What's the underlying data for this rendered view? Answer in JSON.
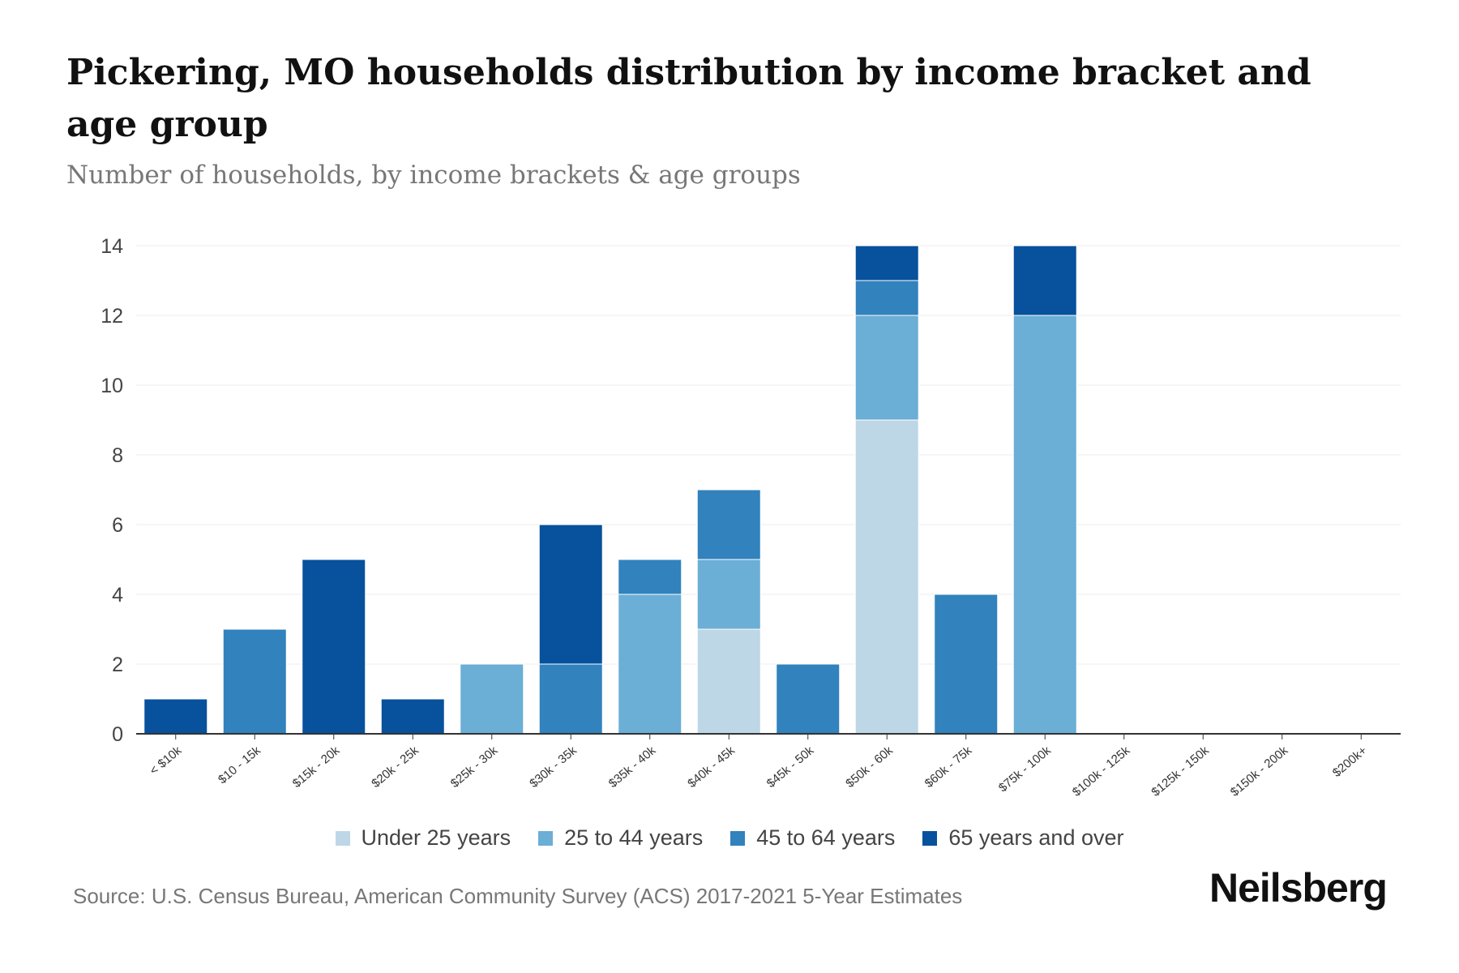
{
  "title": "Pickering, MO households distribution by income bracket and age group",
  "subtitle": "Number of households, by income brackets & age groups",
  "source": "Source: U.S. Census Bureau, American Community Survey (ACS) 2017-2021 5-Year Estimates",
  "logo": "Neilsberg",
  "chart_data": {
    "type": "bar",
    "stacked": true,
    "title": "Pickering, MO households distribution by income bracket and age group",
    "ylim": [
      0,
      14
    ],
    "yticks": [
      0,
      2,
      4,
      6,
      8,
      10,
      12,
      14
    ],
    "categories": [
      "< $10k",
      "$10 - 15k",
      "$15k - 20k",
      "$20k - 25k",
      "$25k - 30k",
      "$30k - 35k",
      "$35k - 40k",
      "$40k - 45k",
      "$45k - 50k",
      "$50k - 60k",
      "$60k - 75k",
      "$75k - 100k",
      "$100k - 125k",
      "$125k - 150k",
      "$150k - 200k",
      "$200k+"
    ],
    "series": [
      {
        "name": "Under 25 years",
        "color": "#bdd7e7",
        "values": [
          0,
          0,
          0,
          0,
          0,
          0,
          0,
          3,
          0,
          9,
          0,
          0,
          0,
          0,
          0,
          0
        ]
      },
      {
        "name": "25 to 44 years",
        "color": "#6baed6",
        "values": [
          0,
          0,
          0,
          0,
          2,
          0,
          4,
          2,
          0,
          3,
          0,
          12,
          0,
          0,
          0,
          0
        ]
      },
      {
        "name": "45 to 64 years",
        "color": "#3182bd",
        "values": [
          0,
          3,
          0,
          0,
          0,
          2,
          1,
          2,
          2,
          1,
          4,
          0,
          0,
          0,
          0,
          0
        ]
      },
      {
        "name": "65 years and over",
        "color": "#08519c",
        "values": [
          1,
          0,
          5,
          1,
          0,
          4,
          0,
          0,
          0,
          1,
          0,
          2,
          0,
          0,
          0,
          0
        ]
      }
    ],
    "legend": "bottom"
  }
}
